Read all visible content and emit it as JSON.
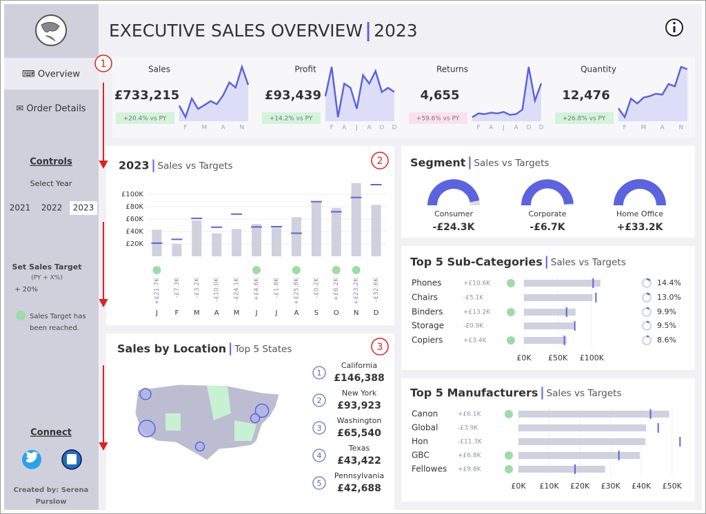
{
  "sidebar": {
    "nav": [
      "⌨ Overview",
      "✉ Order Details"
    ],
    "controls_title": "Controls",
    "select_year": "Select Year",
    "years": [
      "2021",
      "2022",
      "2023"
    ],
    "set_target": "Set Sales Target",
    "target_formula": "(PY + X%)",
    "target_value": "+ 20%",
    "legend_note": [
      "Sales Target has",
      "been reached."
    ],
    "connect": "Connect",
    "credit": [
      "Created by: Serena",
      "Purslow"
    ]
  },
  "header": {
    "title": "EXECUTIVE SALES OVERVIEW",
    "year": "2023"
  },
  "annotations": [
    "1",
    "2",
    "3"
  ],
  "kpis": [
    {
      "name": "Sales",
      "value": "£733,215",
      "change": "+20.4% vs PY",
      "chip_color": "#d4f3da",
      "months": [
        null,
        "F",
        null,
        null,
        "M",
        null,
        null,
        "A",
        null,
        null,
        "N",
        null
      ],
      "spark": [
        43,
        21,
        57,
        37,
        44,
        52,
        46,
        63,
        88,
        78,
        118,
        83
      ]
    },
    {
      "name": "Profit",
      "value": "£93,439",
      "change": "+14.2% vs PY",
      "chip_color": "#d4f3da",
      "months": [
        null,
        "F",
        null,
        "A",
        null,
        "J",
        null,
        "A",
        null,
        "O",
        null,
        "D"
      ],
      "spark": [
        7,
        14,
        2,
        10,
        9,
        4,
        12,
        10,
        13,
        8,
        9,
        8
      ]
    },
    {
      "name": "Returns",
      "value": "4,655",
      "change": "+59.6% vs PY",
      "chip_color": "#fbe0f0",
      "months": [
        null,
        "F",
        null,
        "A",
        null,
        "J",
        null,
        "A",
        null,
        "O",
        null,
        "D"
      ],
      "spark": [
        250,
        300,
        290,
        310,
        300,
        320,
        280,
        290,
        350,
        920,
        470,
        700
      ]
    },
    {
      "name": "Quantity",
      "value": "12,476",
      "change": "+26.8% vs PY",
      "chip_color": "#d4f3da",
      "months": [
        null,
        "F",
        null,
        null,
        "M",
        null,
        null,
        "A",
        null,
        null,
        "N",
        null
      ],
      "spark": [
        600,
        420,
        800,
        700,
        820,
        850,
        900,
        880,
        1100,
        1050,
        1450,
        1400
      ]
    }
  ],
  "monthly": {
    "title": "2023",
    "subtitle": "Sales vs Targets",
    "categories": [
      "J",
      "F",
      "M",
      "A",
      "M",
      "J",
      "J",
      "A",
      "S",
      "O",
      "N",
      "D"
    ],
    "sales": [
      43000,
      20000,
      58000,
      37000,
      44000,
      52000,
      46000,
      63000,
      88000,
      78000,
      118000,
      83000
    ],
    "targets": [
      21300,
      27300,
      61200,
      47000,
      68100,
      47400,
      47800,
      37200,
      88200,
      71800,
      94800,
      115600
    ],
    "diff_labels": [
      "+£21.7K",
      "-£7.3K",
      "-£3.2K",
      "-£10.0K",
      "-£24.1K",
      "+£4.6K",
      "-£1.8K",
      "+£25.8K",
      "-£0.2K",
      "+£6.2K",
      "+£23.2K",
      "-£32.6K"
    ],
    "reached": [
      true,
      false,
      false,
      false,
      false,
      true,
      false,
      true,
      false,
      true,
      true,
      false
    ],
    "ylim": [
      0,
      120000
    ],
    "yticks": [
      {
        "value": 20000,
        "label": "£20K"
      },
      {
        "value": 40000,
        "label": "£40K"
      },
      {
        "value": 60000,
        "label": "£60K"
      },
      {
        "value": 80000,
        "label": "£80K"
      },
      {
        "value": 100000,
        "label": "£100K"
      }
    ]
  },
  "segment": {
    "title": "Segment",
    "subtitle": "Sales vs Targets",
    "names": [
      "Consumer",
      "Corporate",
      "Home Office"
    ],
    "diffs": [
      "-£24.3K",
      "-£6.7K",
      "+£33.2K"
    ],
    "attainment": [
      94,
      98,
      100
    ],
    "gauge_lim": [
      0,
      100
    ]
  },
  "subcategories": {
    "title": "Top 5 Sub-Categories",
    "subtitle": "Sales vs Targets",
    "names": [
      "Phones",
      "Chairs",
      "Binders",
      "Storage",
      "Copiers"
    ],
    "diffs": [
      "+£10.6K",
      "-£5.1K",
      "+£13.2K",
      "-£0.9K",
      "+£3.4K"
    ],
    "reached": [
      true,
      false,
      true,
      false,
      true
    ],
    "sales": [
      112600,
      101000,
      76000,
      74000,
      63000
    ],
    "targets": [
      102000,
      106100,
      62800,
      74900,
      59600
    ],
    "share": {
      "values": [
        14.4,
        13,
        9.9,
        9.5,
        8.6
      ],
      "value_labels": [
        "14.4%",
        "13.0%",
        "9.9%",
        "9.5%",
        "8.6%"
      ]
    },
    "xlim": [
      0,
      120000
    ],
    "xticks": [
      {
        "value": 0,
        "label": "£0K"
      },
      {
        "value": 50000,
        "label": "£50K"
      },
      {
        "value": 100000,
        "label": "£100K"
      }
    ]
  },
  "manufacturers": {
    "title": "Top 5 Manufacturers",
    "subtitle": "Sales vs Targets",
    "names": [
      "Canon",
      "Global",
      "Hon",
      "GBC",
      "Fellowes"
    ],
    "diffs": [
      "+£6.1K",
      "-£3.9K",
      "-£11.3K",
      "+£6.8K",
      "+£9.8K"
    ],
    "reached": [
      true,
      false,
      false,
      true,
      true
    ],
    "sales": [
      49100,
      41600,
      41300,
      39500,
      28200
    ],
    "targets": [
      43000,
      45500,
      52600,
      32700,
      18400
    ],
    "xlim": [
      0,
      55000
    ],
    "xticks": [
      {
        "value": 0,
        "label": "£0K"
      },
      {
        "value": 10000,
        "label": "£10K"
      },
      {
        "value": 20000,
        "label": "£20K"
      },
      {
        "value": 30000,
        "label": "£30K"
      },
      {
        "value": 40000,
        "label": "£40K"
      },
      {
        "value": 50000,
        "label": "£50K"
      }
    ]
  },
  "location": {
    "title": "Sales by Location",
    "subtitle": "Top 5 States",
    "ranks": [
      1,
      2,
      3,
      4,
      5
    ],
    "states": [
      "California",
      "New York",
      "Washington",
      "Texas",
      "Pennsylvania"
    ],
    "values": [
      146388,
      93923,
      65540,
      43422,
      42688
    ],
    "value_labels": [
      "£146,388",
      "£93,923",
      "£65,540",
      "£43,422",
      "£42,688"
    ]
  }
}
